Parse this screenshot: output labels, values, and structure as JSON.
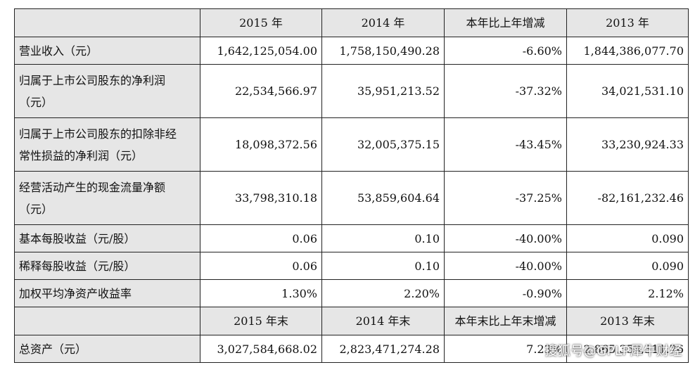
{
  "table": {
    "header1": [
      "2015 年",
      "2014 年",
      "本年比上年增减",
      "2013 年"
    ],
    "rows1": [
      {
        "label": "营业收入（元）",
        "values": [
          "1,642,125,054.00",
          "1,758,150,490.28",
          "-6.60%",
          "1,844,386,077.70"
        ]
      },
      {
        "label_line1": "归属于上市公司股东的净利润",
        "label_line2": "（元）",
        "values": [
          "22,534,566.97",
          "35,951,213.52",
          "-37.32%",
          "34,021,531.10"
        ]
      },
      {
        "label_line1": "归属于上市公司股东的扣除非经",
        "label_line2": "常性损益的净利润（元）",
        "values": [
          "18,098,372.56",
          "32,005,375.15",
          "-43.45%",
          "33,230,924.33"
        ]
      },
      {
        "label_line1": "经营活动产生的现金流量净额",
        "label_line2": "（元）",
        "values": [
          "33,798,310.18",
          "53,859,604.64",
          "-37.25%",
          "-82,161,232.46"
        ]
      },
      {
        "label": "基本每股收益（元/股）",
        "values": [
          "0.06",
          "0.10",
          "-40.00%",
          "0.090"
        ]
      },
      {
        "label": "稀释每股收益（元/股）",
        "values": [
          "0.06",
          "0.10",
          "-40.00%",
          "0.090"
        ]
      },
      {
        "label": "加权平均净资产收益率",
        "values": [
          "1.30%",
          "2.20%",
          "-0.90%",
          "2.12%"
        ]
      }
    ],
    "header2": [
      "2015 年末",
      "2014 年末",
      "本年末比上年末增减",
      "2013 年末"
    ],
    "rows2": [
      {
        "label": "总资产（元）",
        "values": [
          "3,027,584,668.02",
          "2,823,471,274.28",
          "7.23%",
          "2,865,353,311.76"
        ]
      }
    ]
  },
  "watermark": "搜狐号@GPLP犀牛财经"
}
